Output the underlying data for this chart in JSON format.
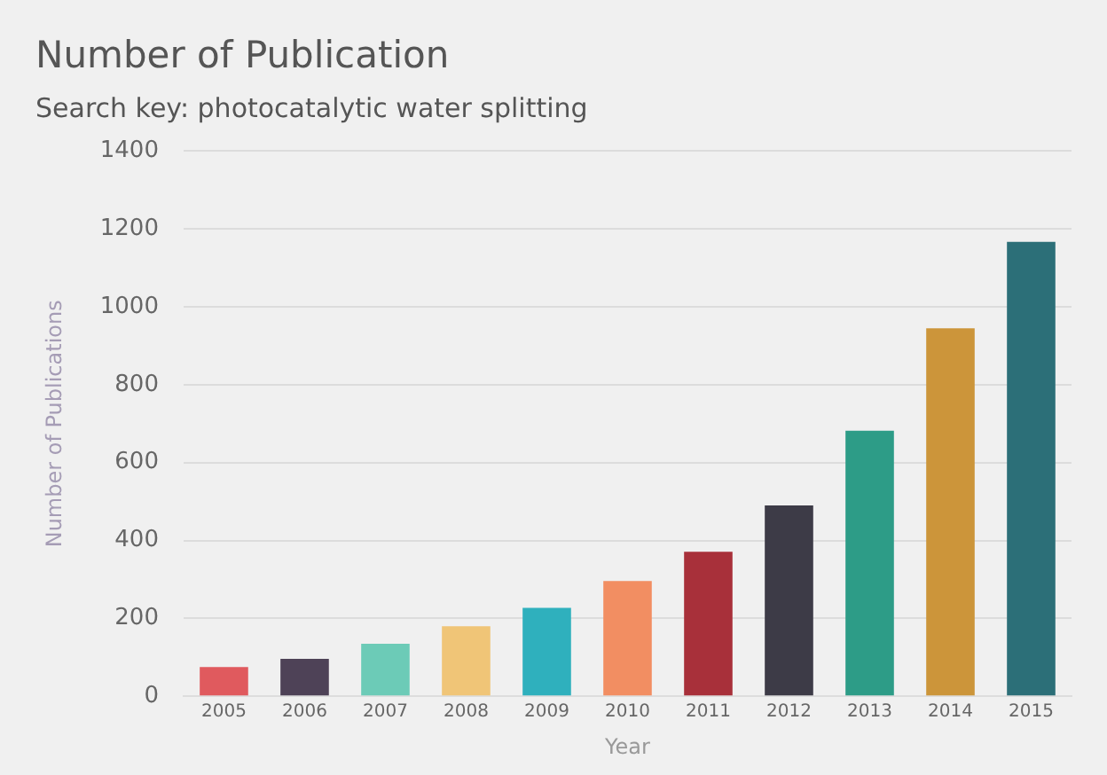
{
  "chart_data": {
    "type": "bar",
    "title": "Number of Publication",
    "subtitle": "Search key: photocatalytic water splitting",
    "xlabel": "Year",
    "ylabel": "Number of Publications",
    "categories": [
      "2005",
      "2006",
      "2007",
      "2008",
      "2009",
      "2010",
      "2011",
      "2012",
      "2013",
      "2014",
      "2015"
    ],
    "values": [
      75,
      96,
      135,
      180,
      227,
      296,
      371,
      490,
      682,
      945,
      1167
    ],
    "colors": [
      "#e05a5e",
      "#4e4257",
      "#6ccbb7",
      "#f0c577",
      "#2fb0bd",
      "#f28e62",
      "#a8303a",
      "#3d3b47",
      "#2d9c87",
      "#cc953a",
      "#2c6f78"
    ],
    "ylim": [
      0,
      1400
    ],
    "yticks": [
      0,
      200,
      400,
      600,
      800,
      1000,
      1200,
      1400
    ],
    "grid": "y",
    "legend": false
  }
}
